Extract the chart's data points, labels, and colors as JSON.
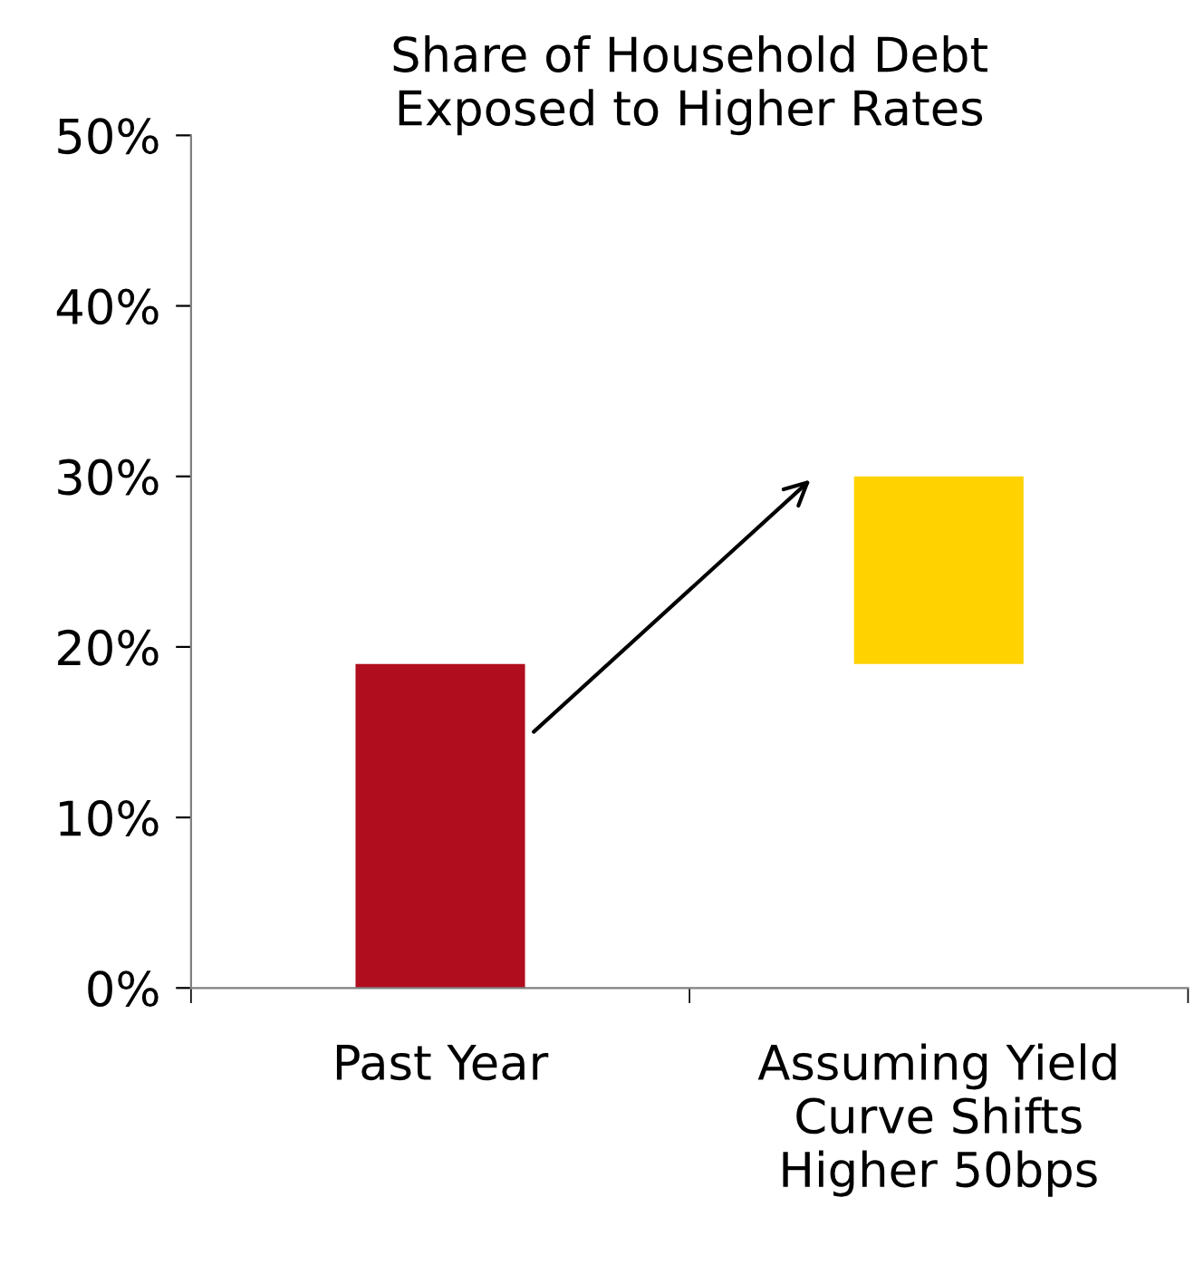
{
  "chart_data": {
    "type": "bar",
    "title": "Share of Household Debt\nExposed to Higher Rates",
    "categories": [
      "Past Year",
      "Assuming Yield\nCurve Shifts\nHigher 50bps"
    ],
    "values": [
      19,
      11
    ],
    "base": [
      0,
      19
    ],
    "colors": [
      "#b00d1e",
      "#ffd200"
    ],
    "ylim": [
      0,
      50
    ],
    "yticks": [
      {
        "value": 0,
        "label": "0%"
      },
      {
        "value": 10,
        "label": "10%"
      },
      {
        "value": 20,
        "label": "20%"
      },
      {
        "value": 30,
        "label": "30%"
      },
      {
        "value": 40,
        "label": "40%"
      },
      {
        "value": 50,
        "label": "50%"
      }
    ],
    "grid": false
  }
}
